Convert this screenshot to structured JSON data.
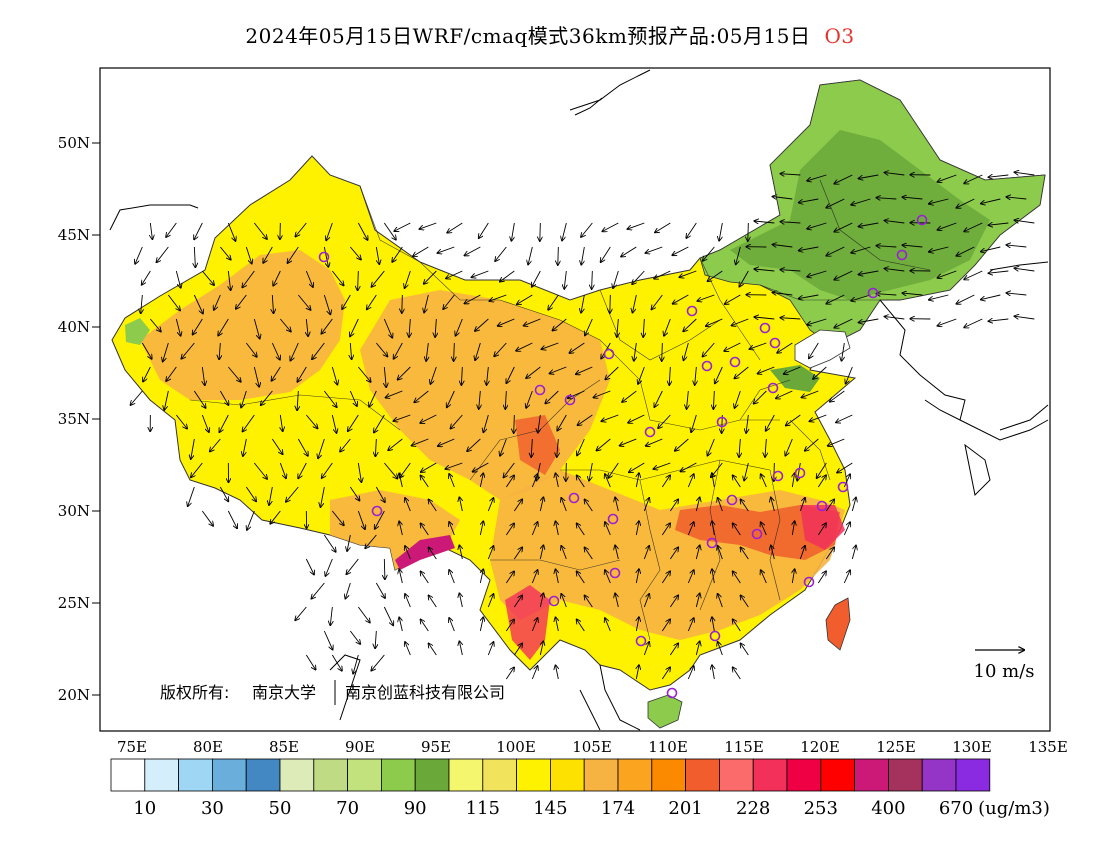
{
  "title": {
    "text": "2024年05月15日WRF/cmaq模式36km预报产品:05月15日",
    "pollutant": "O3"
  },
  "axes": {
    "lat_labels": [
      "50N",
      "45N",
      "40N",
      "35N",
      "30N",
      "25N",
      "20N"
    ],
    "lon_labels": [
      "75E",
      "80E",
      "85E",
      "90E",
      "95E",
      "100E",
      "105E",
      "110E",
      "115E",
      "120E",
      "125E",
      "130E",
      "135E"
    ]
  },
  "wind_legend": {
    "label": "10 m/s"
  },
  "copyright": {
    "prefix": "版权所有:",
    "org1": "南京大学",
    "org2": "南京创蓝科技有限公司"
  },
  "colorbar": {
    "unit": "(ug/m3)",
    "colors": [
      "#ffffff",
      "#d4effb",
      "#9ed6f4",
      "#6aaedc",
      "#4388c2",
      "#dcebb7",
      "#bfdb84",
      "#c2e27e",
      "#8ccb4b",
      "#6aa83a",
      "#f4f76d",
      "#f2e35c",
      "#fff200",
      "#fde100",
      "#f7b342",
      "#fba41f",
      "#fb8a00",
      "#f15d2c",
      "#fc6b6b",
      "#f2305a",
      "#ef0044",
      "#ff0000",
      "#cc1877",
      "#a5325c",
      "#9435c8",
      "#8a2be2"
    ],
    "labels": [
      "10",
      "30",
      "50",
      "70",
      "90",
      "115",
      "145",
      "174",
      "201",
      "228",
      "253",
      "400",
      "670"
    ]
  }
}
